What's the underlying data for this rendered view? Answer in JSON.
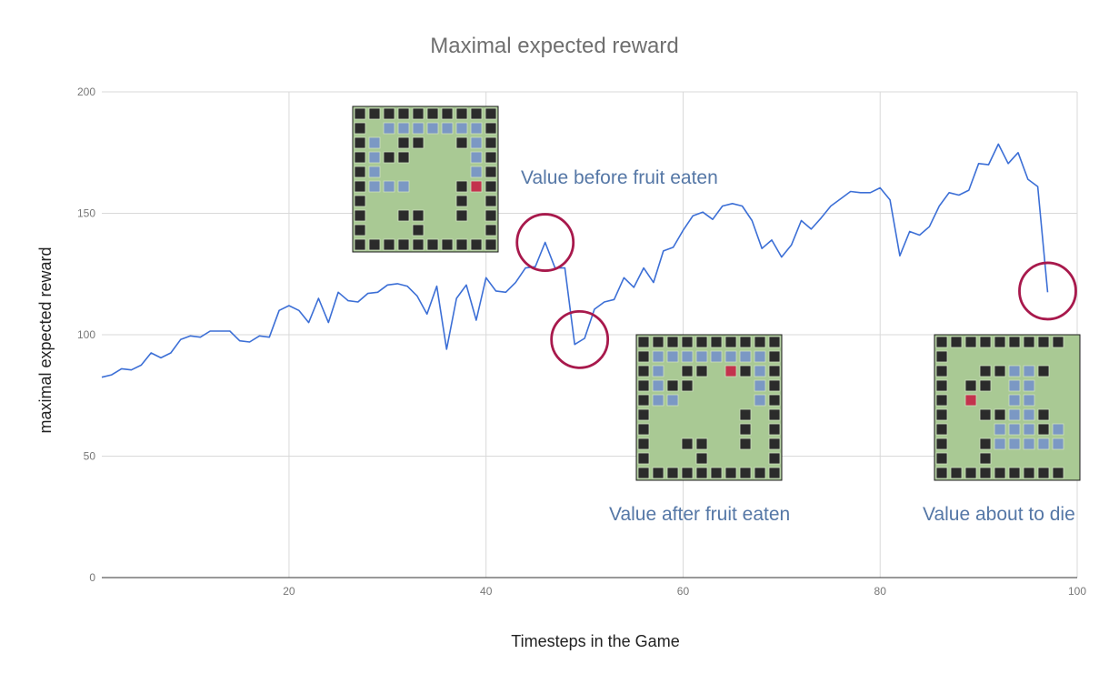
{
  "chart_data": {
    "type": "line",
    "title": "Maximal expected reward",
    "xlabel": "Timesteps in the Game",
    "ylabel": "maximal expected reward",
    "xlim": [
      1,
      100
    ],
    "ylim": [
      0,
      200
    ],
    "x_ticks": [
      20,
      40,
      60,
      80,
      100
    ],
    "y_ticks": [
      0,
      50,
      100,
      150,
      200
    ],
    "grid": true,
    "series": [
      {
        "color": "#3c6fd6",
        "x": [
          1,
          2,
          3,
          4,
          5,
          6,
          7,
          8,
          9,
          10,
          11,
          12,
          13,
          14,
          15,
          16,
          17,
          18,
          19,
          20,
          21,
          22,
          23,
          24,
          25,
          26,
          27,
          28,
          29,
          30,
          31,
          32,
          33,
          34,
          35,
          36,
          37,
          38,
          39,
          40,
          41,
          42,
          43,
          44,
          45,
          46,
          47,
          48,
          49,
          50,
          51,
          52,
          53,
          54,
          55,
          56,
          57,
          58,
          59,
          60,
          61,
          62,
          63,
          64,
          65,
          66,
          67,
          68,
          69,
          70,
          71,
          72,
          73,
          74,
          75,
          76,
          77,
          78,
          79,
          80,
          81,
          82,
          83,
          84,
          85,
          86,
          87,
          88,
          89,
          90,
          91,
          92,
          93,
          94,
          95,
          96,
          97
        ],
        "y": [
          82.5,
          83.5,
          86,
          85.5,
          87.5,
          92.5,
          90.5,
          92.5,
          98,
          99.5,
          99,
          101.5,
          101.5,
          101.5,
          97.5,
          97,
          99.5,
          99,
          110,
          112,
          110,
          105,
          115,
          105,
          117.5,
          114,
          113.5,
          117,
          117.5,
          120.5,
          121,
          120,
          116,
          108.5,
          120,
          94,
          115,
          120.5,
          106,
          123.5,
          118,
          117.5,
          121.5,
          127.5,
          128,
          138,
          127.5,
          127.5,
          96,
          98.5,
          110.5,
          113.5,
          114.5,
          123.5,
          119.5,
          127.5,
          121.5,
          134.5,
          136,
          143,
          149,
          150.5,
          147.5,
          153,
          154,
          153,
          147,
          135.5,
          139,
          132,
          137,
          147,
          143.5,
          148,
          153,
          156,
          159,
          158.5,
          158.5,
          160.5,
          155.5,
          132.5,
          142.5,
          141,
          144.5,
          153,
          158.5,
          157.5,
          159.5,
          170.5,
          170,
          178.5,
          170.5,
          175,
          164,
          161,
          117.5
        ]
      }
    ],
    "annotations": {
      "before": "Value before fruit eaten",
      "after": "Value after fruit eaten",
      "die": "Value about to die"
    },
    "highlight_points": [
      {
        "x": 46,
        "y": 138
      },
      {
        "x": 49.5,
        "y": 98
      },
      {
        "x": 97,
        "y": 118
      }
    ],
    "game_boards": {
      "colors": {
        "wall": "#2b2b2b",
        "floor": "#a9c994",
        "snake": "#7b98c4",
        "fruit": "#c3334d",
        "frame": "#1b1b1b"
      },
      "board_before": {
        "snake": [
          [
            1,
            2
          ],
          [
            1,
            3
          ],
          [
            1,
            4
          ],
          [
            1,
            5
          ],
          [
            1,
            6
          ],
          [
            1,
            7
          ],
          [
            1,
            8
          ],
          [
            2,
            1
          ],
          [
            3,
            1
          ],
          [
            4,
            1
          ],
          [
            5,
            1
          ],
          [
            5,
            2
          ],
          [
            5,
            3
          ],
          [
            2,
            8
          ],
          [
            3,
            8
          ],
          [
            4,
            8
          ]
        ],
        "fruit": [
          [
            5,
            8
          ]
        ],
        "obstacles": [
          [
            2,
            3
          ],
          [
            2,
            4
          ],
          [
            2,
            7
          ],
          [
            3,
            2
          ],
          [
            3,
            3
          ],
          [
            5,
            7
          ],
          [
            6,
            7
          ],
          [
            7,
            7
          ],
          [
            7,
            3
          ],
          [
            7,
            4
          ],
          [
            8,
            4
          ]
        ]
      },
      "board_after": {
        "snake": [
          [
            1,
            1
          ],
          [
            1,
            2
          ],
          [
            1,
            3
          ],
          [
            1,
            4
          ],
          [
            1,
            5
          ],
          [
            1,
            6
          ],
          [
            1,
            7
          ],
          [
            1,
            8
          ],
          [
            2,
            1
          ],
          [
            3,
            1
          ],
          [
            4,
            1
          ],
          [
            4,
            2
          ],
          [
            2,
            8
          ],
          [
            3,
            8
          ],
          [
            4,
            8
          ]
        ],
        "fruit": [
          [
            2,
            6
          ]
        ],
        "obstacles": [
          [
            2,
            3
          ],
          [
            2,
            4
          ],
          [
            2,
            7
          ],
          [
            3,
            2
          ],
          [
            3,
            3
          ],
          [
            5,
            7
          ],
          [
            6,
            7
          ],
          [
            7,
            7
          ],
          [
            7,
            3
          ],
          [
            7,
            4
          ],
          [
            8,
            4
          ]
        ]
      },
      "board_die": {
        "snake": [
          [
            2,
            5
          ],
          [
            2,
            6
          ],
          [
            3,
            5
          ],
          [
            3,
            6
          ],
          [
            4,
            5
          ],
          [
            4,
            6
          ],
          [
            5,
            5
          ],
          [
            5,
            6
          ],
          [
            6,
            4
          ],
          [
            6,
            5
          ],
          [
            6,
            6
          ],
          [
            7,
            4
          ],
          [
            7,
            5
          ],
          [
            7,
            6
          ],
          [
            7,
            7
          ],
          [
            6,
            8
          ],
          [
            7,
            8
          ]
        ],
        "fruit": [
          [
            4,
            2
          ]
        ],
        "obstacles": [
          [
            2,
            3
          ],
          [
            2,
            4
          ],
          [
            2,
            7
          ],
          [
            3,
            2
          ],
          [
            3,
            3
          ],
          [
            5,
            3
          ],
          [
            5,
            4
          ],
          [
            5,
            7
          ],
          [
            6,
            7
          ],
          [
            7,
            3
          ],
          [
            8,
            3
          ]
        ]
      }
    }
  }
}
